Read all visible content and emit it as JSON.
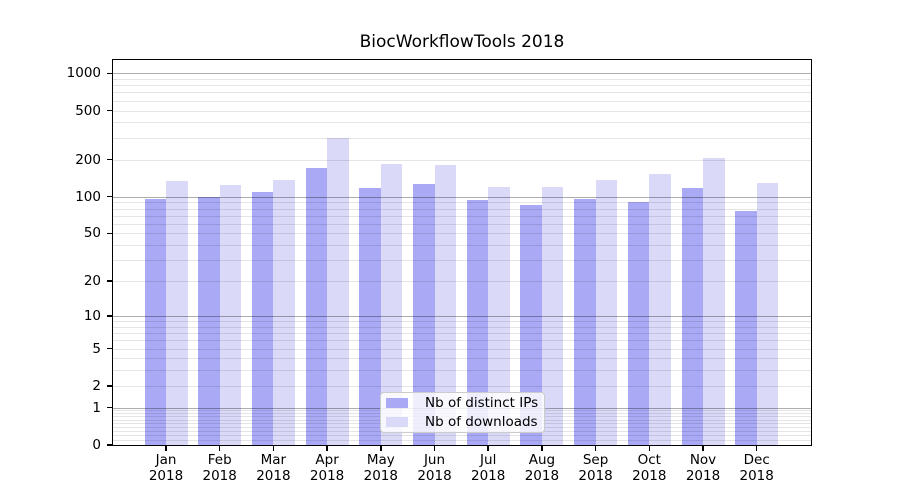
{
  "title": "BiocWorkflowTools 2018",
  "colors": {
    "ips_bar": "#a9a9f5",
    "downloads_bar": "#dadaf8",
    "grid_major": "rgba(0,0,0,0.32)",
    "grid_minor": "rgba(0,0,0,0.10)",
    "axis": "#000000",
    "text": "#000000",
    "legend_border": "#cccccc",
    "legend_bg": "rgba(255,255,255,0.8)"
  },
  "legend": {
    "items": [
      {
        "key": "ips",
        "label": "Nb of distinct IPs",
        "color_key": "ips_bar"
      },
      {
        "key": "downloads",
        "label": "Nb of downloads",
        "color_key": "downloads_bar"
      }
    ]
  },
  "chart_data": {
    "type": "bar",
    "title": "BiocWorkflowTools 2018",
    "categories": [
      "Jan 2018",
      "Feb 2018",
      "Mar 2018",
      "Apr 2018",
      "May 2018",
      "Jun 2018",
      "Jul 2018",
      "Aug 2018",
      "Sep 2018",
      "Oct 2018",
      "Nov 2018",
      "Dec 2018"
    ],
    "series": [
      {
        "key": "ips",
        "name": "Nb of distinct IPs",
        "values": [
          96,
          100,
          110,
          170,
          118,
          127,
          94,
          85,
          95,
          90,
          117,
          77
        ]
      },
      {
        "key": "downloads",
        "name": "Nb of downloads",
        "values": [
          133,
          124,
          137,
          300,
          183,
          181,
          120,
          121,
          137,
          153,
          207,
          130
        ]
      }
    ],
    "xlabel": "",
    "ylabel": "",
    "y_scale": "log10(value+1)",
    "y_ticks": [
      0,
      1,
      2,
      5,
      10,
      20,
      50,
      100,
      200,
      500,
      1000
    ],
    "ylim": [
      0,
      1280
    ],
    "grid": true,
    "grid_major_at": [
      1,
      10,
      100,
      1000
    ],
    "legend_position": "lower center"
  }
}
